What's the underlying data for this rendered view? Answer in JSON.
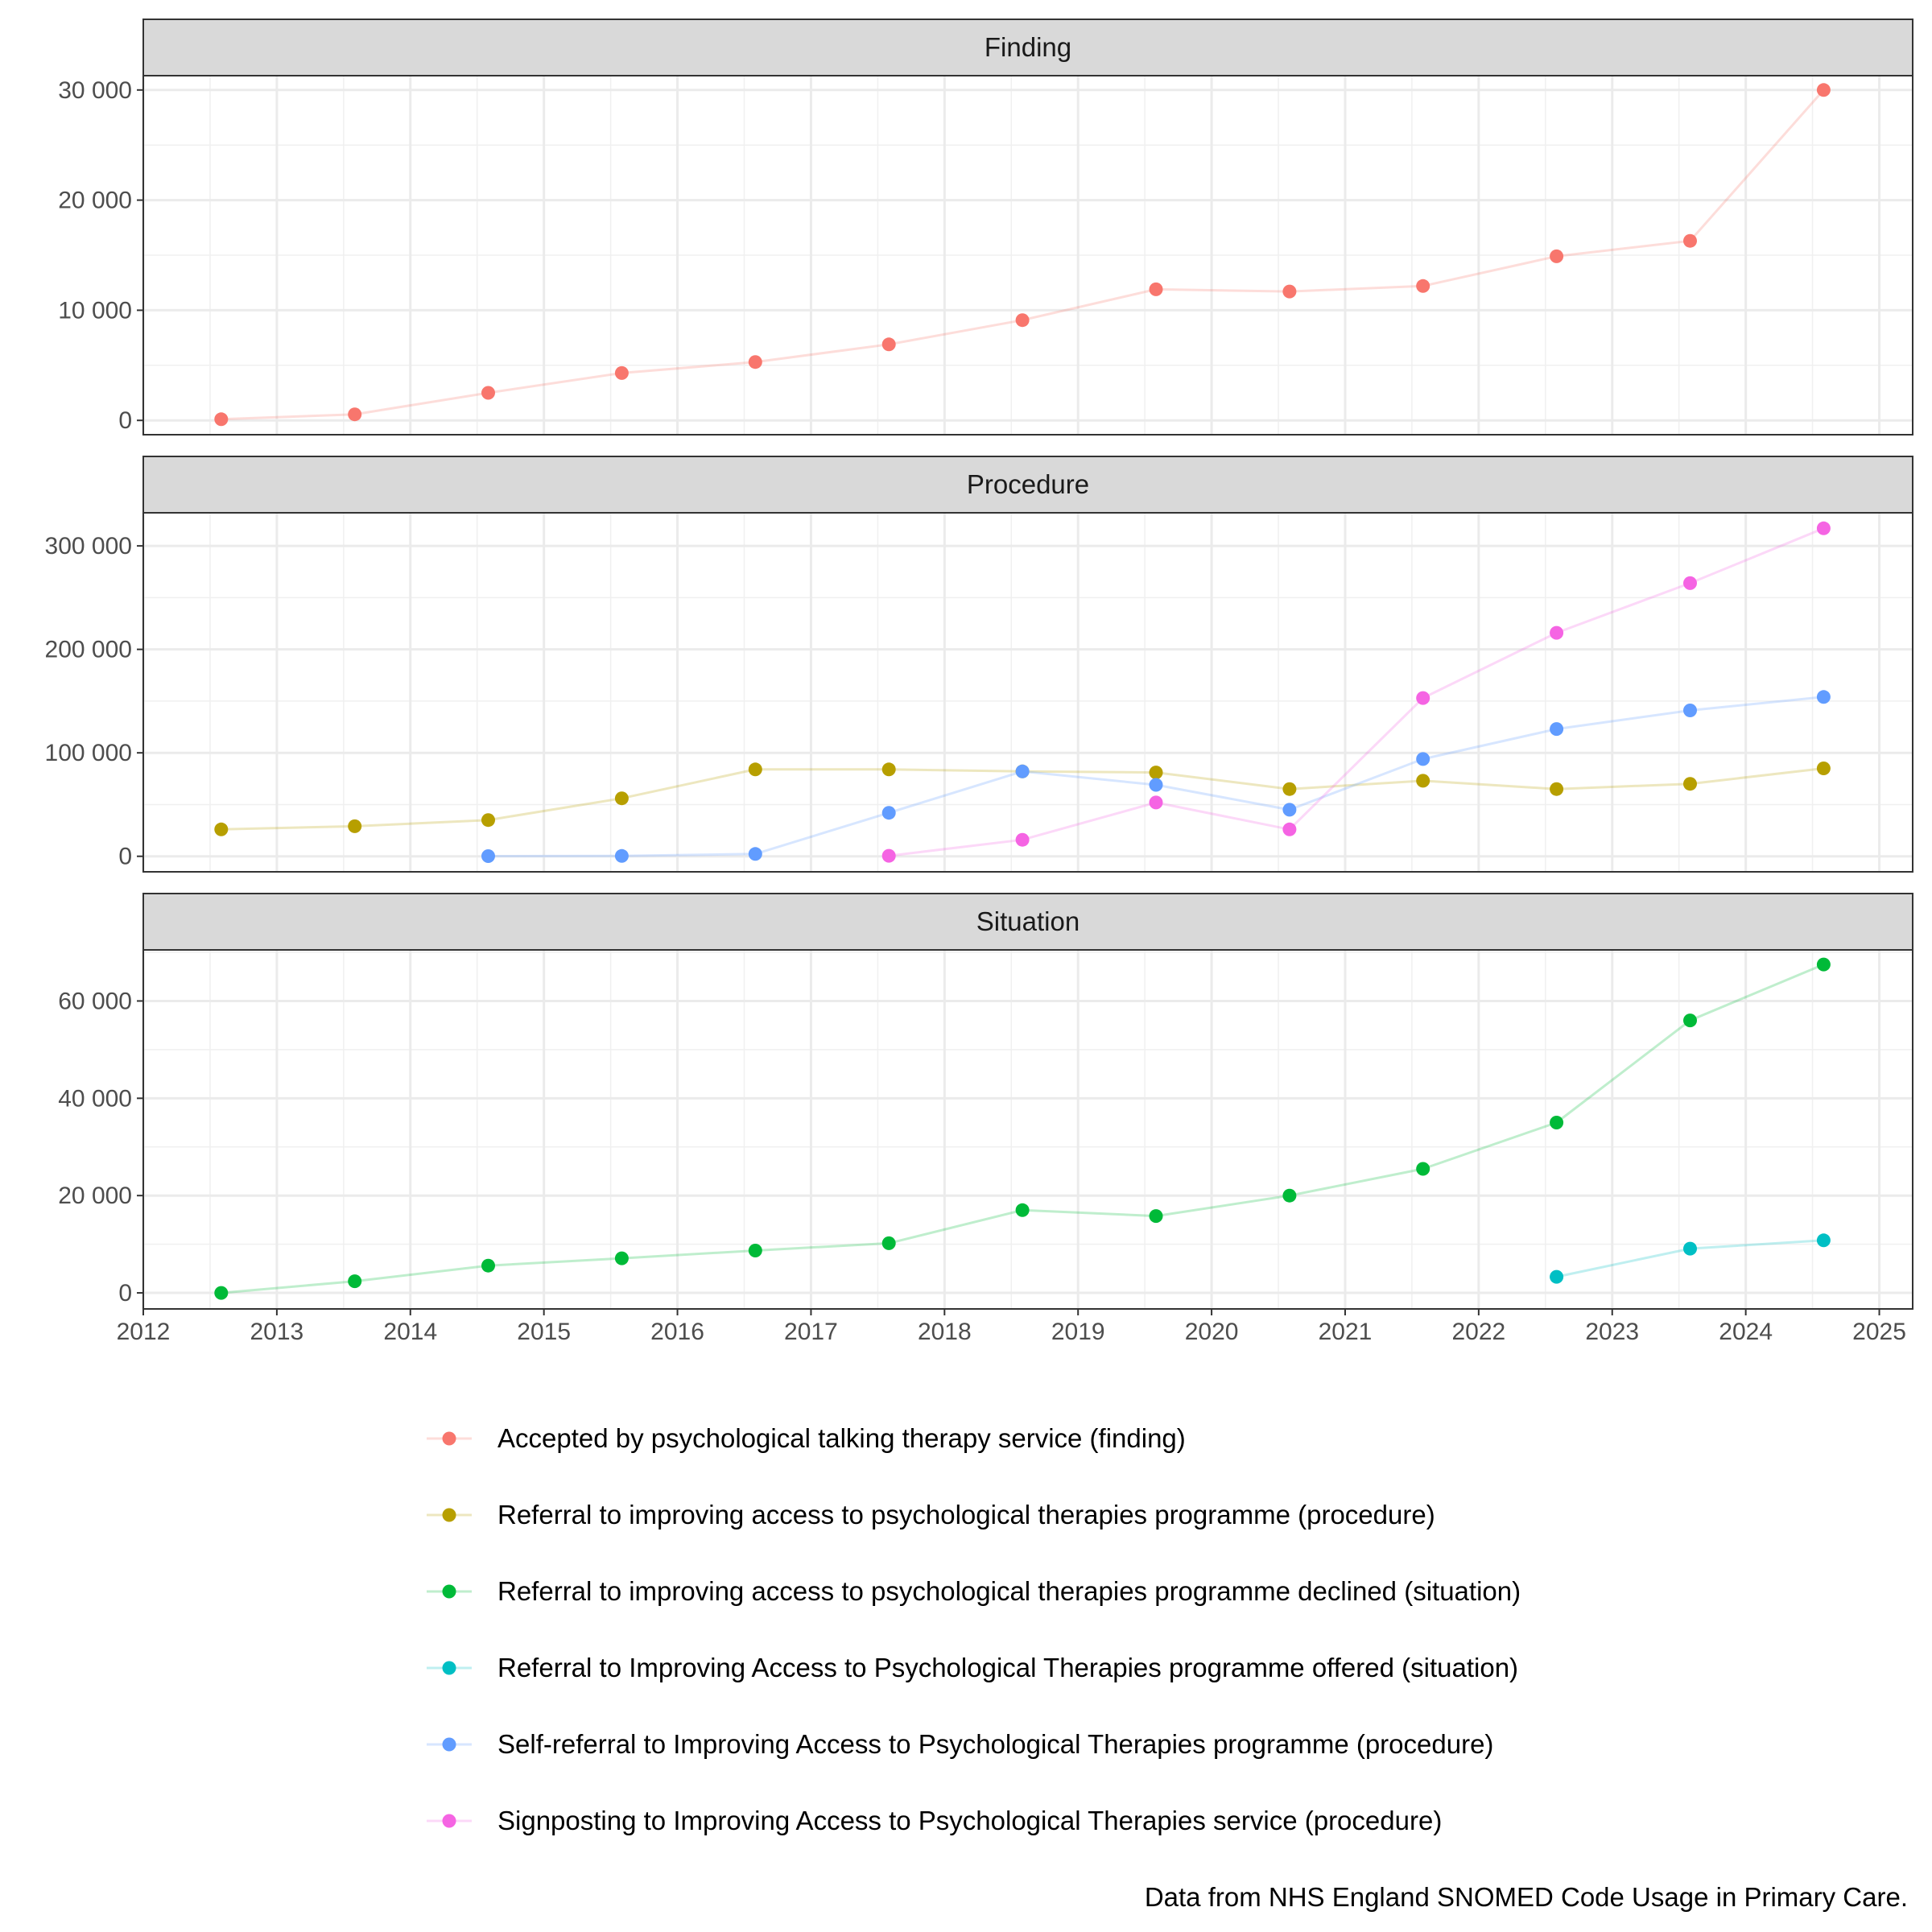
{
  "chart_data": {
    "type": "line",
    "x_axis": {
      "type": "date",
      "range": [
        "2012-01-01",
        "2025-04-01"
      ],
      "ticks": [
        "2012",
        "2013",
        "2014",
        "2015",
        "2016",
        "2017",
        "2018",
        "2019",
        "2020",
        "2021",
        "2022",
        "2023",
        "2024",
        "2025"
      ]
    },
    "panels": [
      {
        "title": "Finding",
        "ylim": [
          -1300,
          31300
        ],
        "yticks": [
          0,
          10000,
          20000,
          30000
        ],
        "ytick_labels": [
          "0",
          "10 000",
          "20 000",
          "30 000"
        ],
        "series": [
          {
            "name": "Accepted by psychological talking therapy service (finding)",
            "x": [
              "2012-08-01",
              "2013-08-01",
              "2014-08-01",
              "2015-08-01",
              "2016-08-01",
              "2017-08-01",
              "2018-08-01",
              "2019-08-01",
              "2020-08-01",
              "2021-08-01",
              "2022-08-01",
              "2023-08-01",
              "2024-08-01"
            ],
            "y": [
              100,
              550,
              2500,
              4300,
              5300,
              6900,
              9100,
              11900,
              11700,
              12200,
              14900,
              16300,
              30000
            ]
          }
        ]
      },
      {
        "title": "Procedure",
        "ylim": [
          -15000,
          332000
        ],
        "yticks": [
          0,
          100000,
          200000,
          300000
        ],
        "ytick_labels": [
          "0",
          "100 000",
          "200 000",
          "300 000"
        ],
        "series": [
          {
            "name": "Referral to improving access to psychological therapies programme (procedure)",
            "x": [
              "2012-08-01",
              "2013-08-01",
              "2014-08-01",
              "2015-08-01",
              "2016-08-01",
              "2017-08-01",
              "2018-08-01",
              "2019-08-01",
              "2020-08-01",
              "2021-08-01",
              "2022-08-01",
              "2023-08-01",
              "2024-08-01"
            ],
            "y": [
              26000,
              29000,
              35000,
              56000,
              84000,
              84000,
              82000,
              81000,
              65000,
              73000,
              65000,
              70000,
              85000
            ]
          },
          {
            "name": "Self-referral to Improving Access to Psychological Therapies programme (procedure)",
            "x": [
              "2014-08-01",
              "2015-08-01",
              "2016-08-01",
              "2017-08-01",
              "2018-08-01",
              "2019-08-01",
              "2020-08-01",
              "2021-08-01",
              "2022-08-01",
              "2023-08-01",
              "2024-08-01"
            ],
            "y": [
              200,
              300,
              2300,
              42000,
              82000,
              69000,
              45000,
              94000,
              123000,
              141000,
              154000
            ]
          },
          {
            "name": "Signposting to Improving Access to Psychological Therapies service (procedure)",
            "x": [
              "2017-08-01",
              "2018-08-01",
              "2019-08-01",
              "2020-08-01",
              "2021-08-01",
              "2022-08-01",
              "2023-08-01",
              "2024-08-01"
            ],
            "y": [
              500,
              16000,
              52000,
              26000,
              153000,
              216000,
              264000,
              317000
            ]
          }
        ]
      },
      {
        "title": "Situation",
        "ylim": [
          -3300,
          70500
        ],
        "yticks": [
          0,
          20000,
          40000,
          60000
        ],
        "ytick_labels": [
          "0",
          "20 000",
          "40 000",
          "60 000"
        ],
        "series": [
          {
            "name": "Referral to improving access to psychological therapies programme declined (situation)",
            "x": [
              "2012-08-01",
              "2013-08-01",
              "2014-08-01",
              "2015-08-01",
              "2016-08-01",
              "2017-08-01",
              "2018-08-01",
              "2019-08-01",
              "2020-08-01",
              "2021-08-01",
              "2022-08-01",
              "2023-08-01",
              "2024-08-01"
            ],
            "y": [
              0,
              2400,
              5600,
              7100,
              8700,
              10200,
              17000,
              15800,
              20000,
              25500,
              35000,
              56000,
              67500
            ]
          },
          {
            "name": "Referral to Improving Access to Psychological Therapies programme offered (situation)",
            "x": [
              "2022-08-01",
              "2023-08-01",
              "2024-08-01"
            ],
            "y": [
              3300,
              9100,
              10800
            ]
          }
        ]
      }
    ],
    "legend": {
      "position": "bottom",
      "entries": [
        {
          "name": "Accepted by psychological talking therapy service (finding)",
          "color": "#F8766D"
        },
        {
          "name": "Referral to improving access to psychological therapies programme (procedure)",
          "color": "#B79F00"
        },
        {
          "name": "Referral to improving access to psychological therapies programme declined (situation)",
          "color": "#00BA38"
        },
        {
          "name": "Referral to Improving Access to Psychological Therapies programme offered (situation)",
          "color": "#00BFC4"
        },
        {
          "name": "Self-referral to Improving Access to Psychological Therapies programme (procedure)",
          "color": "#619CFF"
        },
        {
          "name": "Signposting to Improving Access to Psychological Therapies service (procedure)",
          "color": "#F564E3"
        }
      ]
    },
    "caption": "Data from NHS England SNOMED Code Usage in Primary Care.",
    "grid": true,
    "line_alpha": 0.25
  }
}
